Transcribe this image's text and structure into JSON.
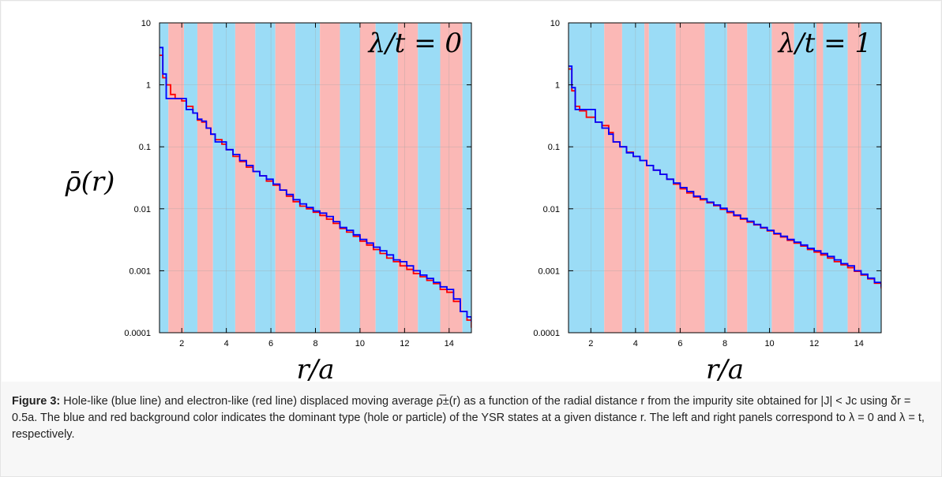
{
  "caption": {
    "figure_label": "Figure 3:",
    "text": " Hole-like (blue line) and electron-like (red line) displaced moving average ρ̅±(r) as a function of the radial distance r from the impurity site obtained for |J| < Jc using δr = 0.5a. The blue and red background color indicates the dominant type (hole or particle) of the YSR states at a given distance r. The left and right panels correspond to λ = 0 and λ = t, respectively."
  },
  "colors": {
    "hole_band": "#9bdcf6",
    "particle_band": "#fbb8b6",
    "hole_line": "#0000ff",
    "electron_line": "#ff0000"
  },
  "chart_data": [
    {
      "type": "line",
      "panel": "left",
      "annotation": "λ/t = 0",
      "ylabel": "ρ̄(r)",
      "xlabel": "r/a",
      "xlim": [
        1,
        15
      ],
      "ylim": [
        0.0001,
        10
      ],
      "yscale": "log",
      "xticks": [
        "2",
        "4",
        "6",
        "8",
        "10",
        "12",
        "14"
      ],
      "yticks": [
        "10",
        "1",
        "0.1",
        "0.01",
        "0.001",
        "0.0001"
      ],
      "grid": true,
      "background_bands": [
        {
          "from": 1.0,
          "to": 1.4,
          "type": "hole"
        },
        {
          "from": 1.4,
          "to": 2.1,
          "type": "particle"
        },
        {
          "from": 2.1,
          "to": 2.7,
          "type": "hole"
        },
        {
          "from": 2.7,
          "to": 3.4,
          "type": "particle"
        },
        {
          "from": 3.4,
          "to": 4.4,
          "type": "hole"
        },
        {
          "from": 4.4,
          "to": 5.3,
          "type": "particle"
        },
        {
          "from": 5.3,
          "to": 6.2,
          "type": "hole"
        },
        {
          "from": 6.2,
          "to": 7.1,
          "type": "particle"
        },
        {
          "from": 7.1,
          "to": 8.2,
          "type": "hole"
        },
        {
          "from": 8.2,
          "to": 9.1,
          "type": "particle"
        },
        {
          "from": 9.1,
          "to": 10.0,
          "type": "hole"
        },
        {
          "from": 10.0,
          "to": 10.7,
          "type": "particle"
        },
        {
          "from": 10.7,
          "to": 11.7,
          "type": "hole"
        },
        {
          "from": 11.7,
          "to": 12.6,
          "type": "particle"
        },
        {
          "from": 12.6,
          "to": 13.6,
          "type": "hole"
        },
        {
          "from": 13.6,
          "to": 14.6,
          "type": "particle"
        },
        {
          "from": 14.6,
          "to": 15.0,
          "type": "hole"
        }
      ],
      "series": [
        {
          "type": "hole",
          "x": [
            1.0,
            1.15,
            1.3,
            1.5,
            1.7,
            2.0,
            2.2,
            2.5,
            2.7,
            2.9,
            3.1,
            3.3,
            3.5,
            3.8,
            4.0,
            4.3,
            4.6,
            4.9,
            5.2,
            5.5,
            5.8,
            6.1,
            6.4,
            6.7,
            7.0,
            7.3,
            7.6,
            7.9,
            8.2,
            8.5,
            8.8,
            9.1,
            9.4,
            9.7,
            10.0,
            10.3,
            10.6,
            10.9,
            11.2,
            11.5,
            11.8,
            12.1,
            12.4,
            12.7,
            13.0,
            13.3,
            13.6,
            13.9,
            14.2,
            14.5,
            14.8,
            15.0
          ],
          "y": [
            4.0,
            1.5,
            0.6,
            0.6,
            0.6,
            0.6,
            0.4,
            0.35,
            0.28,
            0.26,
            0.2,
            0.16,
            0.12,
            0.12,
            0.09,
            0.075,
            0.06,
            0.05,
            0.04,
            0.034,
            0.03,
            0.025,
            0.02,
            0.017,
            0.014,
            0.012,
            0.0105,
            0.0092,
            0.0085,
            0.0075,
            0.0062,
            0.005,
            0.0045,
            0.0038,
            0.0032,
            0.0028,
            0.0024,
            0.0021,
            0.0018,
            0.0015,
            0.0014,
            0.0012,
            0.001,
            0.00085,
            0.00075,
            0.00065,
            0.00055,
            0.0005,
            0.00035,
            0.00022,
            0.00018,
            0.00015
          ]
        },
        {
          "type": "electron",
          "x": [
            1.0,
            1.15,
            1.3,
            1.5,
            1.7,
            2.0,
            2.2,
            2.5,
            2.7,
            2.9,
            3.1,
            3.3,
            3.5,
            3.8,
            4.0,
            4.3,
            4.6,
            4.9,
            5.2,
            5.5,
            5.8,
            6.1,
            6.4,
            6.7,
            7.0,
            7.3,
            7.6,
            7.9,
            8.2,
            8.5,
            8.8,
            9.1,
            9.4,
            9.7,
            10.0,
            10.3,
            10.6,
            10.9,
            11.2,
            11.5,
            11.8,
            12.1,
            12.4,
            12.7,
            13.0,
            13.3,
            13.6,
            13.9,
            14.2,
            14.5,
            14.8,
            15.0
          ],
          "y": [
            3.0,
            1.3,
            1.0,
            0.7,
            0.6,
            0.55,
            0.45,
            0.35,
            0.27,
            0.25,
            0.2,
            0.16,
            0.13,
            0.11,
            0.09,
            0.07,
            0.058,
            0.047,
            0.04,
            0.034,
            0.028,
            0.024,
            0.02,
            0.016,
            0.013,
            0.011,
            0.01,
            0.0088,
            0.0078,
            0.0068,
            0.0058,
            0.0048,
            0.0042,
            0.0036,
            0.003,
            0.0026,
            0.0022,
            0.0019,
            0.0016,
            0.0014,
            0.0012,
            0.00105,
            0.0009,
            0.0008,
            0.0007,
            0.00062,
            0.0005,
            0.00045,
            0.00032,
            0.00022,
            0.00016,
            0.00012
          ]
        }
      ]
    },
    {
      "type": "line",
      "panel": "right",
      "annotation": "λ/t = 1",
      "ylabel": "",
      "xlabel": "r/a",
      "xlim": [
        1,
        15
      ],
      "ylim": [
        0.0001,
        10
      ],
      "yscale": "log",
      "xticks": [
        "2",
        "4",
        "6",
        "8",
        "10",
        "12",
        "14"
      ],
      "yticks": [
        "10",
        "1",
        "0.1",
        "0.01",
        "0.001",
        "0.0001"
      ],
      "grid": true,
      "background_bands": [
        {
          "from": 1.0,
          "to": 2.6,
          "type": "hole"
        },
        {
          "from": 2.6,
          "to": 3.4,
          "type": "particle"
        },
        {
          "from": 3.4,
          "to": 4.4,
          "type": "hole"
        },
        {
          "from": 4.4,
          "to": 4.6,
          "type": "particle"
        },
        {
          "from": 4.6,
          "to": 5.8,
          "type": "hole"
        },
        {
          "from": 5.8,
          "to": 7.1,
          "type": "particle"
        },
        {
          "from": 7.1,
          "to": 8.1,
          "type": "hole"
        },
        {
          "from": 8.1,
          "to": 9.0,
          "type": "particle"
        },
        {
          "from": 9.0,
          "to": 10.1,
          "type": "hole"
        },
        {
          "from": 10.1,
          "to": 11.1,
          "type": "particle"
        },
        {
          "from": 11.1,
          "to": 12.1,
          "type": "hole"
        },
        {
          "from": 12.1,
          "to": 12.4,
          "type": "particle"
        },
        {
          "from": 12.4,
          "to": 13.5,
          "type": "hole"
        },
        {
          "from": 13.5,
          "to": 14.1,
          "type": "particle"
        },
        {
          "from": 14.1,
          "to": 15.0,
          "type": "hole"
        }
      ],
      "series": [
        {
          "type": "hole",
          "x": [
            1.0,
            1.15,
            1.3,
            1.5,
            1.8,
            2.0,
            2.2,
            2.5,
            2.8,
            3.0,
            3.3,
            3.6,
            3.9,
            4.2,
            4.5,
            4.8,
            5.1,
            5.4,
            5.7,
            6.0,
            6.3,
            6.6,
            6.9,
            7.2,
            7.5,
            7.8,
            8.1,
            8.4,
            8.7,
            9.0,
            9.3,
            9.6,
            9.9,
            10.2,
            10.5,
            10.8,
            11.1,
            11.4,
            11.7,
            12.0,
            12.3,
            12.6,
            12.9,
            13.2,
            13.5,
            13.8,
            14.1,
            14.4,
            14.7,
            15.0
          ],
          "y": [
            2.0,
            0.9,
            0.4,
            0.4,
            0.4,
            0.4,
            0.25,
            0.2,
            0.16,
            0.12,
            0.1,
            0.08,
            0.07,
            0.06,
            0.05,
            0.042,
            0.036,
            0.03,
            0.026,
            0.022,
            0.019,
            0.016,
            0.0145,
            0.0128,
            0.0115,
            0.0102,
            0.009,
            0.0079,
            0.007,
            0.0063,
            0.0056,
            0.005,
            0.0045,
            0.004,
            0.0036,
            0.0032,
            0.0029,
            0.0026,
            0.0023,
            0.0021,
            0.0019,
            0.0017,
            0.0015,
            0.0013,
            0.0012,
            0.001,
            0.00088,
            0.00076,
            0.00065,
            0.00055
          ]
        },
        {
          "type": "electron",
          "x": [
            1.0,
            1.15,
            1.3,
            1.5,
            1.8,
            2.0,
            2.2,
            2.5,
            2.8,
            3.0,
            3.3,
            3.6,
            3.9,
            4.2,
            4.5,
            4.8,
            5.1,
            5.4,
            5.7,
            6.0,
            6.3,
            6.6,
            6.9,
            7.2,
            7.5,
            7.8,
            8.1,
            8.4,
            8.7,
            9.0,
            9.3,
            9.6,
            9.9,
            10.2,
            10.5,
            10.8,
            11.1,
            11.4,
            11.7,
            12.0,
            12.3,
            12.6,
            12.9,
            13.2,
            13.5,
            13.8,
            14.1,
            14.4,
            14.7,
            15.0
          ],
          "y": [
            1.8,
            0.8,
            0.45,
            0.38,
            0.3,
            0.3,
            0.25,
            0.22,
            0.17,
            0.12,
            0.1,
            0.082,
            0.07,
            0.06,
            0.05,
            0.042,
            0.036,
            0.03,
            0.025,
            0.021,
            0.018,
            0.0155,
            0.014,
            0.0125,
            0.0112,
            0.0098,
            0.0087,
            0.0077,
            0.0068,
            0.0061,
            0.0055,
            0.0049,
            0.0044,
            0.0039,
            0.0035,
            0.0031,
            0.0028,
            0.0025,
            0.0022,
            0.002,
            0.0018,
            0.0016,
            0.0014,
            0.00125,
            0.00112,
            0.00098,
            0.00085,
            0.00074,
            0.00063,
            0.00052
          ]
        }
      ]
    }
  ]
}
